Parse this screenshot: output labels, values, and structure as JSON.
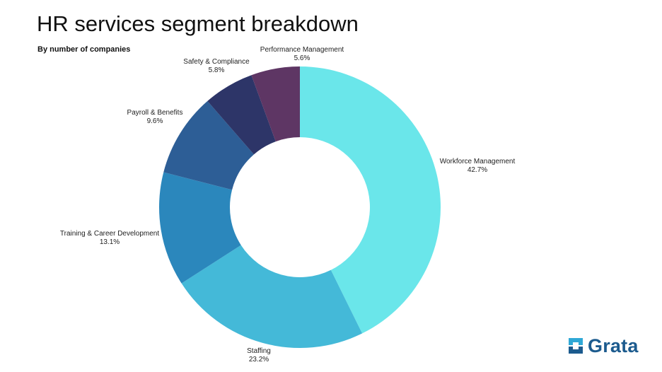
{
  "header": {
    "title": "HR services segment breakdown",
    "subtitle": "By number of companies"
  },
  "brand": {
    "name": "Grata",
    "color": "#1c5b8e",
    "icon_colors": [
      "#2fa8d6",
      "#1c5b8e"
    ]
  },
  "chart_data": {
    "type": "pie",
    "donut": true,
    "title": "HR services segment breakdown",
    "subtitle": "By number of companies",
    "legend": "none",
    "slices": [
      {
        "label": "Workforce Management",
        "value": 42.7,
        "value_label": "42.7%",
        "color": "#6ae6ea"
      },
      {
        "label": "Staffing",
        "value": 23.2,
        "value_label": "23.2%",
        "color": "#44b9d8"
      },
      {
        "label": "Training & Career Development",
        "value": 13.1,
        "value_label": "13.1%",
        "color": "#2b87bc"
      },
      {
        "label": "Payroll & Benefits",
        "value": 9.6,
        "value_label": "9.6%",
        "color": "#2d5e96"
      },
      {
        "label": "Safety & Compliance",
        "value": 5.8,
        "value_label": "5.8%",
        "color": "#2d3568"
      },
      {
        "label": "Performance Management",
        "value": 5.6,
        "value_label": "5.6%",
        "color": "#5e3664"
      }
    ]
  }
}
